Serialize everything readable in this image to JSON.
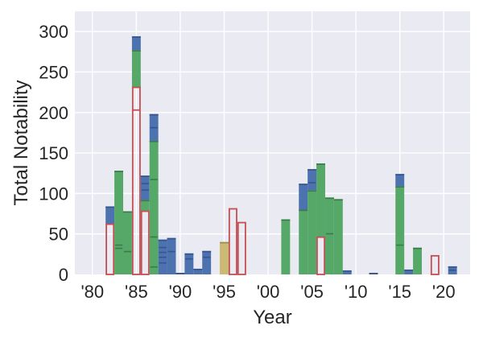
{
  "chart_data": {
    "type": "bar",
    "subtype": "stacked-histogram-by-year",
    "title": "",
    "xlabel": "Year",
    "ylabel": "Total Notability",
    "xlim": [
      1978,
      2023
    ],
    "ylim": [
      0,
      325
    ],
    "grid": true,
    "legend": false,
    "bar_width_years": 1,
    "yticks": [
      0,
      50,
      100,
      150,
      200,
      250,
      300
    ],
    "xticks": [
      {
        "v": 1980,
        "label": "'80"
      },
      {
        "v": 1985,
        "label": "'85"
      },
      {
        "v": 1990,
        "label": "'90"
      },
      {
        "v": 1995,
        "label": "'95"
      },
      {
        "v": 2000,
        "label": "'00"
      },
      {
        "v": 2005,
        "label": "'05"
      },
      {
        "v": 2010,
        "label": "'10"
      },
      {
        "v": 2015,
        "label": "'15"
      },
      {
        "v": 2020,
        "label": "'20"
      }
    ],
    "colors": {
      "blue": "#4C72B0",
      "blue_edge": "#36558B",
      "green": "#55A868",
      "green_edge": "#3C7A4C",
      "tan": "#CCB974",
      "tan_edge": "#9A8A52",
      "red_outline": "#C44E52",
      "plot_background": "#EAEAF2",
      "grid": "#FFFFFF",
      "text": "#262626",
      "figure_background": "#FFFFFF"
    },
    "bars": [
      {
        "year": 1982,
        "outline": 62,
        "outline_dividers": [],
        "segments": [
          {
            "color": "blue",
            "top": 84
          }
        ],
        "dashes": []
      },
      {
        "year": 1983,
        "outline": 0,
        "outline_dividers": [],
        "segments": [
          {
            "color": "green",
            "top": 128
          }
        ],
        "dashes": [
          {
            "color": "green",
            "v": 33
          },
          {
            "color": "green",
            "v": 37
          }
        ]
      },
      {
        "year": 1984,
        "outline": 0,
        "outline_dividers": [],
        "segments": [
          {
            "color": "green",
            "top": 78
          }
        ],
        "dashes": [
          {
            "color": "green",
            "v": 29
          }
        ]
      },
      {
        "year": 1985,
        "outline": 231,
        "outline_dividers": [
          203
        ],
        "segments": [
          {
            "color": "green",
            "top": 277
          },
          {
            "color": "blue",
            "top": 294
          }
        ],
        "dashes": []
      },
      {
        "year": 1986,
        "outline": 78,
        "outline_dividers": [],
        "segments": [
          {
            "color": "green",
            "top": 92
          },
          {
            "color": "blue",
            "top": 122
          }
        ],
        "dashes": [
          {
            "color": "blue",
            "v": 105
          },
          {
            "color": "blue",
            "v": 113
          }
        ]
      },
      {
        "year": 1987,
        "outline": 0,
        "outline_dividers": [],
        "segments": [
          {
            "color": "green",
            "top": 165
          },
          {
            "color": "blue",
            "top": 198
          }
        ],
        "dashes": [
          {
            "color": "green",
            "v": 10
          },
          {
            "color": "green",
            "v": 47
          },
          {
            "color": "green",
            "v": 118
          },
          {
            "color": "blue",
            "v": 182
          }
        ]
      },
      {
        "year": 1988,
        "outline": 0,
        "outline_dividers": [],
        "segments": [
          {
            "color": "blue",
            "top": 43
          }
        ],
        "dashes": [
          {
            "color": "blue",
            "v": 15
          },
          {
            "color": "blue",
            "v": 22
          },
          {
            "color": "blue",
            "v": 28
          },
          {
            "color": "blue",
            "v": 34
          }
        ]
      },
      {
        "year": 1989,
        "outline": 0,
        "outline_dividers": [],
        "segments": [
          {
            "color": "blue",
            "top": 45
          }
        ],
        "dashes": [
          {
            "color": "blue",
            "v": 29
          }
        ]
      },
      {
        "year": 1990,
        "outline": 0,
        "outline_dividers": [],
        "segments": [
          {
            "color": "blue",
            "top": 2
          }
        ],
        "dashes": []
      },
      {
        "year": 1991,
        "outline": 0,
        "outline_dividers": [],
        "segments": [
          {
            "color": "blue",
            "top": 26
          }
        ],
        "dashes": [
          {
            "color": "blue",
            "v": 20
          }
        ]
      },
      {
        "year": 1992,
        "outline": 0,
        "outline_dividers": [],
        "segments": [
          {
            "color": "blue",
            "top": 7
          }
        ],
        "dashes": []
      },
      {
        "year": 1993,
        "outline": 0,
        "outline_dividers": [],
        "segments": [
          {
            "color": "blue",
            "top": 29
          }
        ],
        "dashes": [
          {
            "color": "blue",
            "v": 22
          }
        ]
      },
      {
        "year": 1995,
        "outline": 0,
        "outline_dividers": [],
        "segments": [
          {
            "color": "tan",
            "top": 40
          }
        ],
        "dashes": []
      },
      {
        "year": 1996,
        "outline": 81,
        "outline_dividers": [],
        "segments": [],
        "dashes": []
      },
      {
        "year": 1997,
        "outline": 64,
        "outline_dividers": [],
        "segments": [],
        "dashes": []
      },
      {
        "year": 2002,
        "outline": 0,
        "outline_dividers": [],
        "segments": [
          {
            "color": "green",
            "top": 68
          }
        ],
        "dashes": []
      },
      {
        "year": 2004,
        "outline": 0,
        "outline_dividers": [],
        "segments": [
          {
            "color": "green",
            "top": 80
          },
          {
            "color": "blue",
            "top": 112
          }
        ],
        "dashes": []
      },
      {
        "year": 2005,
        "outline": 0,
        "outline_dividers": [],
        "segments": [
          {
            "color": "green",
            "top": 104
          },
          {
            "color": "blue",
            "top": 130
          }
        ],
        "dashes": [
          {
            "color": "blue",
            "v": 114
          }
        ]
      },
      {
        "year": 2006,
        "outline": 46,
        "outline_dividers": [],
        "segments": [
          {
            "color": "green",
            "top": 137
          }
        ],
        "dashes": []
      },
      {
        "year": 2007,
        "outline": 0,
        "outline_dividers": [],
        "segments": [
          {
            "color": "green",
            "top": 95
          }
        ],
        "dashes": [
          {
            "color": "green",
            "v": 51
          }
        ]
      },
      {
        "year": 2008,
        "outline": 0,
        "outline_dividers": [],
        "segments": [
          {
            "color": "green",
            "top": 93
          }
        ],
        "dashes": []
      },
      {
        "year": 2009,
        "outline": 0,
        "outline_dividers": [],
        "segments": [
          {
            "color": "blue",
            "top": 5
          }
        ],
        "dashes": []
      },
      {
        "year": 2012,
        "outline": 0,
        "outline_dividers": [],
        "segments": [
          {
            "color": "blue",
            "top": 2
          }
        ],
        "dashes": []
      },
      {
        "year": 2015,
        "outline": 0,
        "outline_dividers": [],
        "segments": [
          {
            "color": "green",
            "top": 109
          },
          {
            "color": "blue",
            "top": 124
          }
        ],
        "dashes": [
          {
            "color": "green",
            "v": 37
          }
        ]
      },
      {
        "year": 2016,
        "outline": 0,
        "outline_dividers": [],
        "segments": [
          {
            "color": "blue",
            "top": 6
          }
        ],
        "dashes": []
      },
      {
        "year": 2017,
        "outline": 0,
        "outline_dividers": [],
        "segments": [
          {
            "color": "green",
            "top": 33
          }
        ],
        "dashes": []
      },
      {
        "year": 2019,
        "outline": 23,
        "outline_dividers": [],
        "segments": [],
        "dashes": []
      },
      {
        "year": 2021,
        "outline": 0,
        "outline_dividers": [],
        "segments": [
          {
            "color": "blue",
            "top": 10
          }
        ],
        "dashes": [
          {
            "color": "blue",
            "v": 6
          }
        ]
      }
    ]
  }
}
